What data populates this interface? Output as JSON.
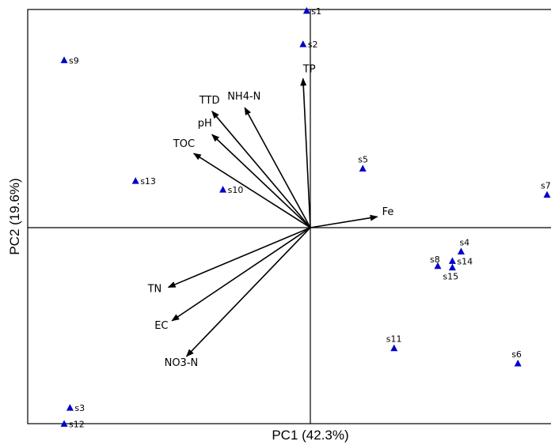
{
  "chart_data": {
    "type": "scatter",
    "title": "",
    "xlabel": "PC1 (42.3%)",
    "ylabel": "PC2 (19.6%)",
    "xlim": [
      -3.5,
      3.3
    ],
    "ylim": [
      -2.8,
      3.0
    ],
    "grid": false,
    "legend": "none",
    "colors": {
      "points": "#0000cc",
      "vectors": "#000000",
      "axes": "#000000"
    },
    "points": [
      {
        "label": "s1",
        "x": -0.05,
        "y": 2.98
      },
      {
        "label": "s2",
        "x": -0.1,
        "y": 2.52
      },
      {
        "label": "s9",
        "x": -3.38,
        "y": 2.3
      },
      {
        "label": "s5",
        "x": 0.72,
        "y": 0.81
      },
      {
        "label": "s13",
        "x": -2.4,
        "y": 0.64
      },
      {
        "label": "s10",
        "x": -1.2,
        "y": 0.52
      },
      {
        "label": "s7",
        "x": 3.25,
        "y": 0.45
      },
      {
        "label": "s4",
        "x": 2.07,
        "y": -0.33
      },
      {
        "label": "s14",
        "x": 1.95,
        "y": -0.46
      },
      {
        "label": "s8",
        "x": 1.75,
        "y": -0.53
      },
      {
        "label": "s15",
        "x": 1.95,
        "y": -0.55
      },
      {
        "label": "s11",
        "x": 1.15,
        "y": -1.66
      },
      {
        "label": "s6",
        "x": 2.85,
        "y": -1.87
      },
      {
        "label": "s3",
        "x": -3.3,
        "y": -2.48
      },
      {
        "label": "s12",
        "x": -3.38,
        "y": -2.7
      }
    ],
    "vectors": [
      {
        "label": "TP",
        "x": -0.1,
        "y": 2.05
      },
      {
        "label": "NH4-N",
        "x": -0.9,
        "y": 1.65
      },
      {
        "label": "TTD",
        "x": -1.35,
        "y": 1.6
      },
      {
        "label": "pH",
        "x": -1.35,
        "y": 1.28
      },
      {
        "label": "TOC",
        "x": -1.6,
        "y": 1.02
      },
      {
        "label": "Fe",
        "x": 0.92,
        "y": 0.15
      },
      {
        "label": "TN",
        "x": -1.95,
        "y": -0.82
      },
      {
        "label": "EC",
        "x": -1.9,
        "y": -1.28
      },
      {
        "label": "NO3-N",
        "x": -1.7,
        "y": -1.77
      }
    ]
  }
}
